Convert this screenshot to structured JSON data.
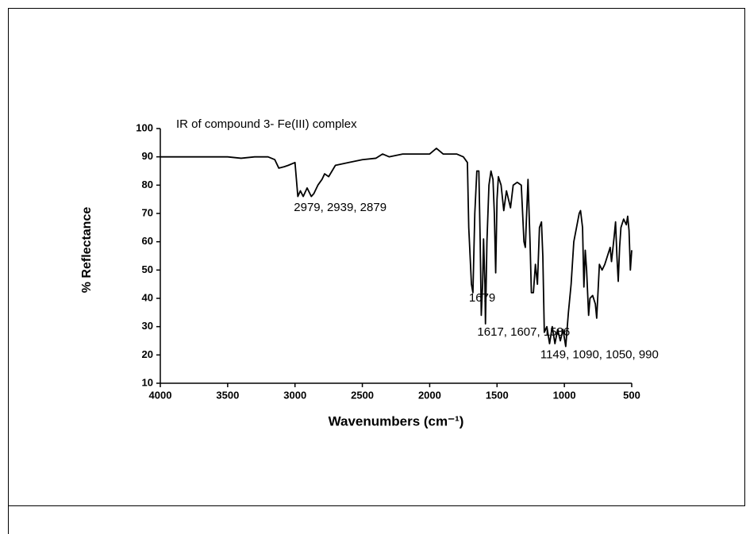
{
  "chart_data": {
    "type": "line",
    "title": "IR of compound 3- Fe(III) complex",
    "x_label": "Wavenumbers (cm⁻¹)",
    "y_label": "% Reflectance",
    "annotations": [
      {
        "text": "2979, 2939, 2879",
        "x": 2979,
        "y": 72
      },
      {
        "text": "1679",
        "x": 1679,
        "y": 40
      },
      {
        "text": "1617, 1607, 1586",
        "x": 1617,
        "y": 28
      },
      {
        "text": "1149, 1090, 1050, 990",
        "x": 1149,
        "y": 20
      }
    ],
    "xlim": [
      4000,
      500
    ],
    "xticks": [
      4000,
      3500,
      3000,
      2500,
      2000,
      1500,
      1000,
      500
    ],
    "ylim": [
      10,
      100
    ],
    "yticks": [
      10,
      20,
      30,
      40,
      50,
      60,
      70,
      80,
      90,
      100
    ],
    "grid": false,
    "series": [
      {
        "color": "#000000",
        "x": [
          4000,
          3900,
          3800,
          3700,
          3600,
          3500,
          3400,
          3300,
          3200,
          3150,
          3120,
          3080,
          3050,
          3000,
          2979,
          2960,
          2939,
          2910,
          2879,
          2860,
          2830,
          2800,
          2780,
          2750,
          2700,
          2600,
          2500,
          2400,
          2350,
          2300,
          2200,
          2100,
          2000,
          1950,
          1900,
          1800,
          1750,
          1720,
          1710,
          1690,
          1679,
          1665,
          1650,
          1635,
          1625,
          1617,
          1607,
          1600,
          1590,
          1586,
          1575,
          1560,
          1545,
          1530,
          1520,
          1510,
          1500,
          1490,
          1470,
          1450,
          1430,
          1400,
          1380,
          1350,
          1320,
          1300,
          1290,
          1280,
          1270,
          1255,
          1245,
          1230,
          1215,
          1200,
          1185,
          1170,
          1160,
          1149,
          1130,
          1110,
          1090,
          1070,
          1050,
          1030,
          1010,
          990,
          970,
          950,
          930,
          910,
          890,
          880,
          865,
          855,
          845,
          835,
          820,
          810,
          790,
          770,
          760,
          740,
          720,
          700,
          680,
          660,
          650,
          630,
          620,
          610,
          600,
          590,
          580,
          560,
          540,
          530,
          520,
          510,
          500
        ],
        "values": [
          90,
          90,
          90,
          90,
          90,
          90,
          89.5,
          90,
          90,
          89,
          86,
          86.5,
          87,
          88,
          76,
          78,
          76,
          79,
          76,
          77,
          80,
          82,
          84,
          83,
          87,
          88,
          89,
          89.5,
          91,
          90,
          91,
          91,
          91,
          93,
          91,
          91,
          90,
          88,
          65,
          45,
          42,
          70,
          85,
          85,
          60,
          34,
          45,
          61,
          45,
          31,
          60,
          80,
          85,
          82,
          70,
          49,
          75,
          83,
          80,
          71,
          78,
          72,
          80,
          81,
          80,
          60,
          58,
          70,
          82,
          60,
          42,
          42,
          52,
          45,
          65,
          67,
          55,
          28,
          30,
          24,
          30,
          24,
          29,
          25,
          29,
          23,
          35,
          45,
          60,
          65,
          70,
          71,
          65,
          44,
          57,
          50,
          34,
          40,
          41,
          38,
          33,
          52,
          50,
          52,
          55,
          58,
          53,
          62,
          67,
          55,
          46,
          58,
          65,
          68,
          66,
          69,
          64,
          50,
          57
        ]
      }
    ]
  }
}
